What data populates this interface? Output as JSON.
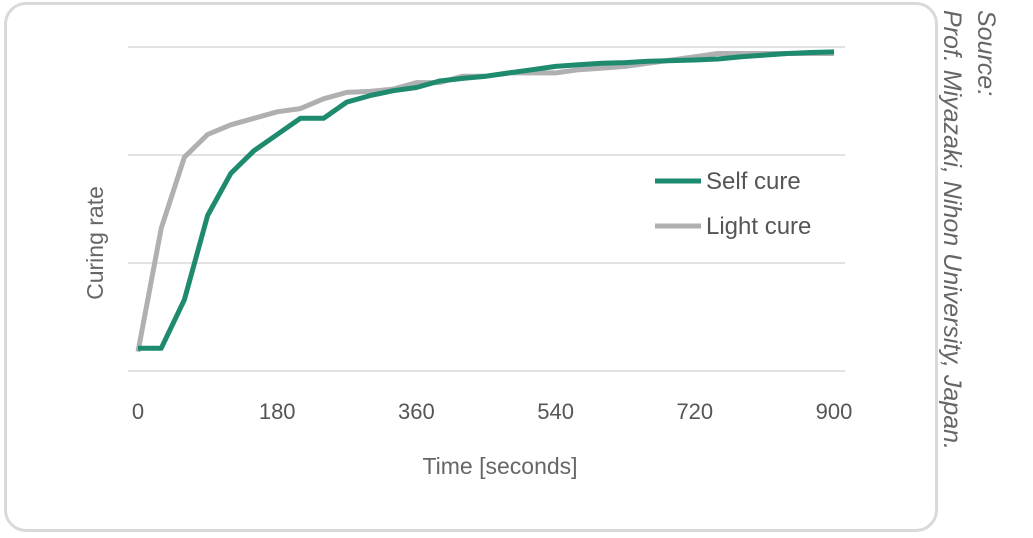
{
  "chart_data": {
    "type": "line",
    "title": "",
    "xlabel": "Time [seconds]",
    "ylabel": "Curing rate",
    "xlim": [
      0,
      900
    ],
    "ylim": [
      0,
      100
    ],
    "xticks": [
      0,
      180,
      360,
      540,
      720,
      900
    ],
    "grid": true,
    "legend_position": "right",
    "series": [
      {
        "name": "Self cure",
        "color": "#1e8a6e",
        "x": [
          0,
          30,
          60,
          90,
          120,
          150,
          180,
          210,
          240,
          270,
          300,
          330,
          360,
          390,
          420,
          450,
          480,
          510,
          540,
          570,
          600,
          630,
          660,
          690,
          720,
          750,
          780,
          810,
          840,
          870,
          900
        ],
        "y": [
          7,
          7,
          22,
          48,
          61,
          68,
          73,
          78,
          78,
          83,
          85,
          86.5,
          87.5,
          89.5,
          90.3,
          91,
          92,
          93,
          94,
          94.5,
          95,
          95.2,
          95.6,
          95.8,
          96,
          96.3,
          97,
          97.5,
          98,
          98.3,
          98.5
        ]
      },
      {
        "name": "Light cure",
        "color": "#b0b0b2",
        "x": [
          0,
          30,
          60,
          90,
          120,
          150,
          180,
          210,
          240,
          270,
          300,
          330,
          360,
          390,
          420,
          450,
          480,
          510,
          540,
          570,
          600,
          630,
          660,
          690,
          720,
          750,
          780,
          810,
          840,
          870,
          900
        ],
        "y": [
          6,
          44,
          66,
          73,
          76,
          78,
          80,
          81,
          84,
          86,
          86.3,
          87,
          89,
          89,
          91,
          91,
          92,
          92,
          92,
          93,
          93.5,
          94,
          95,
          96,
          97,
          98,
          98,
          98,
          98,
          98,
          98
        ]
      }
    ]
  },
  "source": {
    "label": "Source:",
    "text": "Prof. Miyazaki, Nihon University, Japan."
  }
}
